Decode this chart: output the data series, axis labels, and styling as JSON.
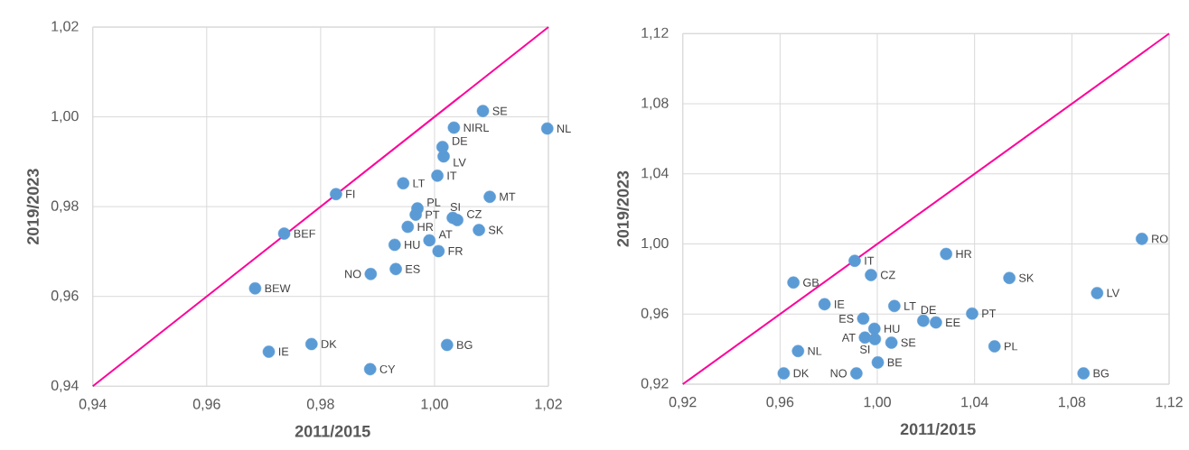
{
  "chart_data": [
    {
      "type": "scatter",
      "xlabel": "2011/2015",
      "ylabel": "2019/2023",
      "xlim": [
        0.94,
        1.02
      ],
      "ylim": [
        0.94,
        1.02
      ],
      "xticks": [
        {
          "value": 0.94,
          "label": "0,94"
        },
        {
          "value": 0.96,
          "label": "0,96"
        },
        {
          "value": 0.98,
          "label": "0,98"
        },
        {
          "value": 1.0,
          "label": "1,00"
        },
        {
          "value": 1.02,
          "label": "1,02"
        }
      ],
      "yticks": [
        {
          "value": 0.94,
          "label": "0,94"
        },
        {
          "value": 0.96,
          "label": "0,96"
        },
        {
          "value": 0.98,
          "label": "0,98"
        },
        {
          "value": 1.0,
          "label": "1,00"
        },
        {
          "value": 1.02,
          "label": "1,02"
        }
      ],
      "grid": true,
      "marker": "circle",
      "series": [
        {
          "type": "line",
          "color": "#ff0099",
          "marker": "none",
          "x": [
            0.94,
            1.02
          ],
          "values": [
            0.94,
            1.02
          ]
        },
        {
          "name": "SE",
          "color": "#5b9bd5",
          "x": [
            1.0085
          ],
          "values": [
            1.0013
          ]
        },
        {
          "name": "NIRL",
          "color": "#5b9bd5",
          "x": [
            1.0034
          ],
          "values": [
            0.9976
          ]
        },
        {
          "name": "NL",
          "color": "#5b9bd5",
          "x": [
            1.0198
          ],
          "values": [
            0.9974
          ]
        },
        {
          "name": "DE",
          "color": "#5b9bd5",
          "x": [
            1.0014
          ],
          "values": [
            0.9933
          ]
        },
        {
          "name": "LV",
          "color": "#5b9bd5",
          "x": [
            1.0016
          ],
          "values": [
            0.9912
          ]
        },
        {
          "name": "IT",
          "color": "#5b9bd5",
          "x": [
            1.0005
          ],
          "values": [
            0.9869
          ]
        },
        {
          "name": "LT",
          "color": "#5b9bd5",
          "x": [
            0.9945
          ],
          "values": [
            0.9852
          ]
        },
        {
          "name": "FI",
          "color": "#5b9bd5",
          "x": [
            0.9827
          ],
          "values": [
            0.9828
          ]
        },
        {
          "name": "MT",
          "color": "#5b9bd5",
          "x": [
            1.0097
          ],
          "values": [
            0.9822
          ]
        },
        {
          "name": "PL",
          "color": "#5b9bd5",
          "x": [
            0.997
          ],
          "values": [
            0.9796
          ]
        },
        {
          "name": "PT",
          "color": "#5b9bd5",
          "x": [
            0.9967
          ],
          "values": [
            0.9782
          ]
        },
        {
          "name": "SI",
          "color": "#5b9bd5",
          "x": [
            1.0032
          ],
          "values": [
            0.9775
          ]
        },
        {
          "name": "CZ",
          "color": "#5b9bd5",
          "x": [
            1.004
          ],
          "values": [
            0.977
          ]
        },
        {
          "name": "HR",
          "color": "#5b9bd5",
          "x": [
            0.9953
          ],
          "values": [
            0.9755
          ]
        },
        {
          "name": "SK",
          "color": "#5b9bd5",
          "x": [
            1.0078
          ],
          "values": [
            0.9748
          ]
        },
        {
          "name": "BEF",
          "color": "#5b9bd5",
          "x": [
            0.9736
          ],
          "values": [
            0.974
          ]
        },
        {
          "name": "AT",
          "color": "#5b9bd5",
          "x": [
            0.9991
          ],
          "values": [
            0.9725
          ]
        },
        {
          "name": "HU",
          "color": "#5b9bd5",
          "x": [
            0.993
          ],
          "values": [
            0.9715
          ]
        },
        {
          "name": "FR",
          "color": "#5b9bd5",
          "x": [
            1.0007
          ],
          "values": [
            0.9701
          ]
        },
        {
          "name": "ES",
          "color": "#5b9bd5",
          "x": [
            0.9932
          ],
          "values": [
            0.9661
          ]
        },
        {
          "name": "NO",
          "color": "#5b9bd5",
          "x": [
            0.9888
          ],
          "values": [
            0.965
          ]
        },
        {
          "name": "BEW",
          "color": "#5b9bd5",
          "x": [
            0.9685
          ],
          "values": [
            0.9618
          ]
        },
        {
          "name": "IE",
          "color": "#5b9bd5",
          "x": [
            0.9709
          ],
          "values": [
            0.9477
          ]
        },
        {
          "name": "DK",
          "color": "#5b9bd5",
          "x": [
            0.9784
          ],
          "values": [
            0.9494
          ]
        },
        {
          "name": "BG",
          "color": "#5b9bd5",
          "x": [
            1.0022
          ],
          "values": [
            0.9492
          ]
        },
        {
          "name": "CY",
          "color": "#5b9bd5",
          "x": [
            0.9887
          ],
          "values": [
            0.9438
          ]
        }
      ]
    },
    {
      "type": "scatter",
      "xlabel": "2011/2015",
      "ylabel": "2019/2023",
      "xlim": [
        0.92,
        1.12
      ],
      "ylim": [
        0.92,
        1.12
      ],
      "xticks": [
        {
          "value": 0.92,
          "label": "0,92"
        },
        {
          "value": 0.96,
          "label": "0,96"
        },
        {
          "value": 1.0,
          "label": "1,00"
        },
        {
          "value": 1.04,
          "label": "1,04"
        },
        {
          "value": 1.08,
          "label": "1,08"
        },
        {
          "value": 1.12,
          "label": "1,12"
        }
      ],
      "yticks": [
        {
          "value": 0.92,
          "label": "0,92"
        },
        {
          "value": 0.96,
          "label": "0,96"
        },
        {
          "value": 1.0,
          "label": "1,00"
        },
        {
          "value": 1.04,
          "label": "1,04"
        },
        {
          "value": 1.08,
          "label": "1,08"
        },
        {
          "value": 1.12,
          "label": "1,12"
        }
      ],
      "grid": true,
      "marker": "circle",
      "series": [
        {
          "type": "line",
          "color": "#ff0099",
          "marker": "none",
          "x": [
            0.92,
            1.12
          ],
          "values": [
            0.92,
            1.12
          ]
        },
        {
          "name": "RO",
          "color": "#5b9bd5",
          "x": [
            1.1088
          ],
          "values": [
            1.0029
          ]
        },
        {
          "name": "HR",
          "color": "#5b9bd5",
          "x": [
            1.0283
          ],
          "values": [
            0.9943
          ]
        },
        {
          "name": "IT",
          "color": "#5b9bd5",
          "x": [
            0.9907
          ],
          "values": [
            0.9904
          ]
        },
        {
          "name": "CZ",
          "color": "#5b9bd5",
          "x": [
            0.9974
          ],
          "values": [
            0.9823
          ]
        },
        {
          "name": "GB",
          "color": "#5b9bd5",
          "x": [
            0.9655
          ],
          "values": [
            0.978
          ]
        },
        {
          "name": "SK",
          "color": "#5b9bd5",
          "x": [
            1.0543
          ],
          "values": [
            0.9806
          ]
        },
        {
          "name": "LV",
          "color": "#5b9bd5",
          "x": [
            1.0904
          ],
          "values": [
            0.972
          ]
        },
        {
          "name": "IE",
          "color": "#5b9bd5",
          "x": [
            0.9783
          ],
          "values": [
            0.9656
          ]
        },
        {
          "name": "LT",
          "color": "#5b9bd5",
          "x": [
            1.007
          ],
          "values": [
            0.9646
          ]
        },
        {
          "name": "PT",
          "color": "#5b9bd5",
          "x": [
            1.039
          ],
          "values": [
            0.9603
          ]
        },
        {
          "name": "ES",
          "color": "#5b9bd5",
          "x": [
            0.9942
          ],
          "values": [
            0.9574
          ]
        },
        {
          "name": "DE",
          "color": "#5b9bd5",
          "x": [
            1.0189
          ],
          "values": [
            0.9562
          ]
        },
        {
          "name": "EE",
          "color": "#5b9bd5",
          "x": [
            1.0241
          ],
          "values": [
            0.9552
          ]
        },
        {
          "name": "HU",
          "color": "#5b9bd5",
          "x": [
            0.9988
          ],
          "values": [
            0.9516
          ]
        },
        {
          "name": "AT",
          "color": "#5b9bd5",
          "x": [
            0.9949
          ],
          "values": [
            0.9466
          ]
        },
        {
          "name": "SI",
          "color": "#5b9bd5",
          "x": [
            0.999
          ],
          "values": [
            0.9457
          ]
        },
        {
          "name": "SE",
          "color": "#5b9bd5",
          "x": [
            1.0058
          ],
          "values": [
            0.9437
          ]
        },
        {
          "name": "PL",
          "color": "#5b9bd5",
          "x": [
            1.0482
          ],
          "values": [
            0.9416
          ]
        },
        {
          "name": "NL",
          "color": "#5b9bd5",
          "x": [
            0.9674
          ],
          "values": [
            0.9389
          ]
        },
        {
          "name": "BE",
          "color": "#5b9bd5",
          "x": [
            1.0002
          ],
          "values": [
            0.9324
          ]
        },
        {
          "name": "DK",
          "color": "#5b9bd5",
          "x": [
            0.9615
          ],
          "values": [
            0.9262
          ]
        },
        {
          "name": "NO",
          "color": "#5b9bd5",
          "x": [
            0.9914
          ],
          "values": [
            0.9262
          ]
        },
        {
          "name": "BG",
          "color": "#5b9bd5",
          "x": [
            1.0848
          ],
          "values": [
            0.9262
          ]
        }
      ]
    }
  ]
}
